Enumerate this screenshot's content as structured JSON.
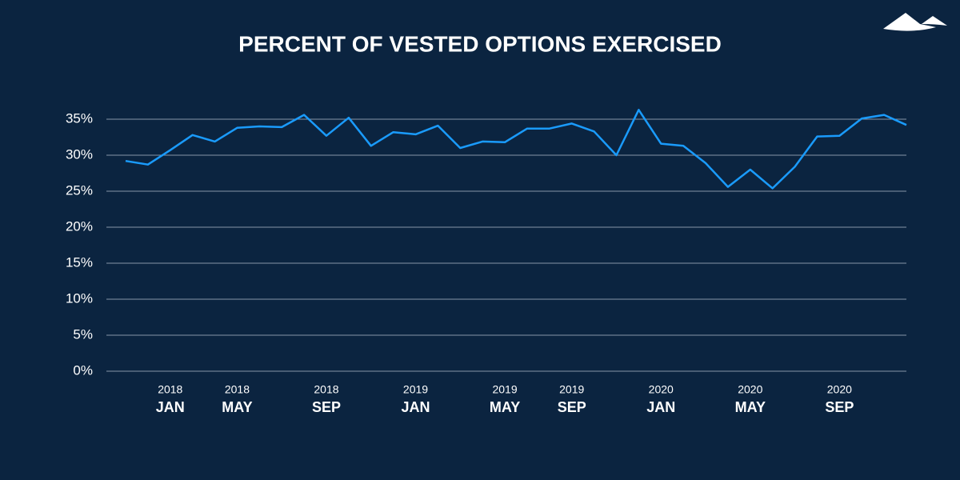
{
  "chart_data": {
    "type": "line",
    "title": "PERCENT OF VESTED OPTIONS EXERCISED",
    "categories": [
      null,
      null,
      {
        "year": "2018",
        "month": "JAN"
      },
      null,
      null,
      {
        "year": "2018",
        "month": "MAY"
      },
      null,
      null,
      null,
      {
        "year": "2018",
        "month": "SEP"
      },
      null,
      null,
      null,
      {
        "year": "2019",
        "month": "JAN"
      },
      null,
      null,
      null,
      {
        "year": "2019",
        "month": "MAY"
      },
      null,
      null,
      {
        "year": "2019",
        "month": "SEP"
      },
      null,
      null,
      null,
      {
        "year": "2020",
        "month": "JAN"
      },
      null,
      null,
      null,
      {
        "year": "2020",
        "month": "MAY"
      },
      null,
      null,
      null,
      {
        "year": "2020",
        "month": "SEP"
      },
      null,
      null,
      null
    ],
    "series": [
      {
        "color": "#1a9bfc",
        "values": [
          29.2,
          28.7,
          30.7,
          32.8,
          31.9,
          33.8,
          34.0,
          33.9,
          35.6,
          32.7,
          35.2,
          31.3,
          33.2,
          32.9,
          34.1,
          31.0,
          31.9,
          31.8,
          33.7,
          33.7,
          34.4,
          33.3,
          30.0,
          36.3,
          31.6,
          31.3,
          28.9,
          25.6,
          28.0,
          25.4,
          28.4,
          32.6,
          32.7,
          35.1,
          35.6,
          34.2
        ]
      }
    ],
    "ylim": [
      0,
      35
    ],
    "yticks": [
      {
        "value": 0,
        "label": "0%"
      },
      {
        "value": 5,
        "label": "5%"
      },
      {
        "value": 10,
        "label": "10%"
      },
      {
        "value": 15,
        "label": "15%"
      },
      {
        "value": 20,
        "label": "20%"
      },
      {
        "value": 25,
        "label": "25%"
      },
      {
        "value": 30,
        "label": "30%"
      },
      {
        "value": 35,
        "label": "35%"
      }
    ],
    "grid": true
  }
}
